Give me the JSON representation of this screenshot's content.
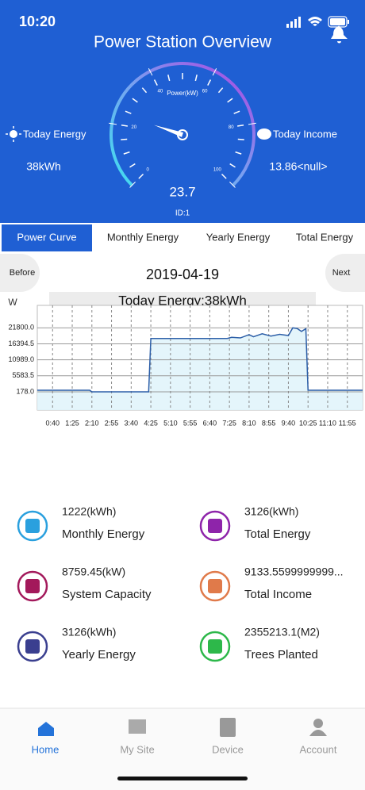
{
  "status_bar": {
    "time": "10:20"
  },
  "header": {
    "title": "Power Station Overview"
  },
  "gauge": {
    "label": "Power(kW)",
    "range": [
      0,
      100
    ],
    "ticks": [
      0,
      20,
      40,
      60,
      80,
      100
    ],
    "value": 23.7,
    "value_label": "23.7",
    "id": "ID:1"
  },
  "today_energy": {
    "label": "Today Energy",
    "value": "38kWh"
  },
  "today_income": {
    "label": "Today Income",
    "value": "13.86<null>"
  },
  "tabs": [
    "Power Curve",
    "Monthly Energy",
    "Yearly Energy",
    "Total Energy"
  ],
  "date_nav": {
    "before": "Before",
    "date": "2019-04-19",
    "next": "Next"
  },
  "chart_data": {
    "type": "line",
    "title": "Today Energy:38kWh",
    "y_label": "W",
    "color": "#2d5fa8",
    "fill": "#e1f4fb",
    "x": [
      5,
      125,
      130,
      260,
      265,
      440,
      450,
      470,
      490,
      500,
      520,
      540,
      560,
      580,
      590,
      600,
      610,
      620,
      625,
      750
    ],
    "values": [
      700,
      700,
      178,
      178,
      18200,
      18200,
      18600,
      18400,
      19500,
      18800,
      19800,
      19000,
      19600,
      19200,
      21800,
      21600,
      20600,
      21500,
      700,
      700
    ],
    "xlim": [
      5,
      750
    ],
    "xticks": [
      {
        "value": 40,
        "label": "0:40"
      },
      {
        "value": 85,
        "label": "1:25"
      },
      {
        "value": 130,
        "label": "2:10"
      },
      {
        "value": 175,
        "label": "2:55"
      },
      {
        "value": 220,
        "label": "3:40"
      },
      {
        "value": 265,
        "label": "4:25"
      },
      {
        "value": 310,
        "label": "5:10"
      },
      {
        "value": 355,
        "label": "5:55"
      },
      {
        "value": 400,
        "label": "6:40"
      },
      {
        "value": 445,
        "label": "7:25"
      },
      {
        "value": 490,
        "label": "8:10"
      },
      {
        "value": 535,
        "label": "8:55"
      },
      {
        "value": 580,
        "label": "9:40"
      },
      {
        "value": 625,
        "label": "10:25"
      },
      {
        "value": 670,
        "label": "11:10"
      },
      {
        "value": 715,
        "label": "11:55"
      }
    ],
    "ylim": [
      -6000,
      29400
    ],
    "yticks": [
      {
        "value": 178,
        "label": "178.0"
      },
      {
        "value": 5583.5,
        "label": "5583.5"
      },
      {
        "value": 10989,
        "label": "10989.0"
      },
      {
        "value": 16394.5,
        "label": "16394.5"
      },
      {
        "value": 21800,
        "label": "21800.0"
      }
    ],
    "grid": true
  },
  "stats": [
    {
      "value": "1222(kWh)",
      "label": "Monthly Energy"
    },
    {
      "value": "3126(kWh)",
      "label": "Total Energy"
    },
    {
      "value": "8759.45(kW)",
      "label": "System Capacity"
    },
    {
      "value": "9133.5599999999...",
      "label": "Total Income"
    },
    {
      "value": "3126(kWh)",
      "label": "Yearly Energy"
    },
    {
      "value": "2355213.1(M2)",
      "label": "Trees Planted"
    }
  ],
  "bottom_nav": [
    "Home",
    "My Site",
    "Device",
    "Account"
  ]
}
